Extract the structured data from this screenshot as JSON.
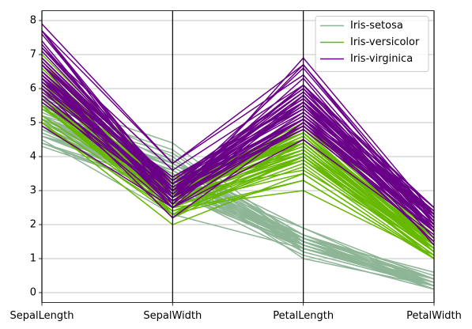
{
  "chart_data": {
    "type": "parallel",
    "categories": [
      "SepalLength",
      "SepalWidth",
      "PetalLength",
      "PetalWidth"
    ],
    "ylim": [
      -0.29,
      8.29
    ],
    "yticks": [
      0,
      1,
      2,
      3,
      4,
      5,
      6,
      7,
      8
    ],
    "grid": true,
    "legend": "upper right",
    "series": [
      {
        "name": "Iris-setosa",
        "color": "#8db596",
        "values": [
          [
            5.1,
            3.5,
            1.4,
            0.2
          ],
          [
            4.9,
            3.0,
            1.4,
            0.2
          ],
          [
            4.7,
            3.2,
            1.3,
            0.2
          ],
          [
            4.6,
            3.1,
            1.5,
            0.2
          ],
          [
            5.0,
            3.6,
            1.4,
            0.2
          ],
          [
            5.4,
            3.9,
            1.7,
            0.4
          ],
          [
            4.6,
            3.4,
            1.4,
            0.3
          ],
          [
            5.0,
            3.4,
            1.5,
            0.2
          ],
          [
            4.4,
            2.9,
            1.4,
            0.2
          ],
          [
            4.9,
            3.1,
            1.5,
            0.1
          ],
          [
            5.4,
            3.7,
            1.5,
            0.2
          ],
          [
            4.8,
            3.4,
            1.6,
            0.2
          ],
          [
            4.8,
            3.0,
            1.4,
            0.1
          ],
          [
            4.3,
            3.0,
            1.1,
            0.1
          ],
          [
            5.8,
            4.0,
            1.2,
            0.2
          ],
          [
            5.7,
            4.4,
            1.5,
            0.4
          ],
          [
            5.4,
            3.9,
            1.3,
            0.4
          ],
          [
            5.1,
            3.5,
            1.4,
            0.3
          ],
          [
            5.7,
            3.8,
            1.7,
            0.3
          ],
          [
            5.1,
            3.8,
            1.5,
            0.3
          ],
          [
            5.4,
            3.4,
            1.7,
            0.2
          ],
          [
            5.1,
            3.7,
            1.5,
            0.4
          ],
          [
            4.6,
            3.6,
            1.0,
            0.2
          ],
          [
            5.1,
            3.3,
            1.7,
            0.5
          ],
          [
            4.8,
            3.4,
            1.9,
            0.2
          ],
          [
            5.0,
            3.0,
            1.6,
            0.2
          ],
          [
            5.0,
            3.4,
            1.6,
            0.4
          ],
          [
            5.2,
            3.5,
            1.5,
            0.2
          ],
          [
            5.2,
            3.4,
            1.4,
            0.2
          ],
          [
            4.7,
            3.2,
            1.6,
            0.2
          ],
          [
            4.8,
            3.1,
            1.6,
            0.2
          ],
          [
            5.4,
            3.4,
            1.5,
            0.4
          ],
          [
            5.2,
            4.1,
            1.5,
            0.1
          ],
          [
            5.5,
            4.2,
            1.4,
            0.2
          ],
          [
            4.9,
            3.1,
            1.5,
            0.1
          ],
          [
            5.0,
            3.2,
            1.2,
            0.2
          ],
          [
            5.5,
            3.5,
            1.3,
            0.2
          ],
          [
            4.9,
            3.1,
            1.5,
            0.1
          ],
          [
            4.4,
            3.0,
            1.3,
            0.2
          ],
          [
            5.1,
            3.4,
            1.5,
            0.2
          ],
          [
            5.0,
            3.5,
            1.3,
            0.3
          ],
          [
            4.5,
            2.3,
            1.3,
            0.3
          ],
          [
            4.4,
            3.2,
            1.3,
            0.2
          ],
          [
            5.0,
            3.5,
            1.6,
            0.6
          ],
          [
            5.1,
            3.8,
            1.9,
            0.4
          ],
          [
            4.8,
            3.0,
            1.4,
            0.3
          ],
          [
            5.1,
            3.8,
            1.6,
            0.2
          ],
          [
            4.6,
            3.2,
            1.4,
            0.2
          ],
          [
            5.3,
            3.7,
            1.5,
            0.2
          ],
          [
            5.0,
            3.3,
            1.4,
            0.2
          ]
        ]
      },
      {
        "name": "Iris-versicolor",
        "color": "#66b800",
        "values": [
          [
            7.0,
            3.2,
            4.7,
            1.4
          ],
          [
            6.4,
            3.2,
            4.5,
            1.5
          ],
          [
            6.9,
            3.1,
            4.9,
            1.5
          ],
          [
            5.5,
            2.3,
            4.0,
            1.3
          ],
          [
            6.5,
            2.8,
            4.6,
            1.5
          ],
          [
            5.7,
            2.8,
            4.5,
            1.3
          ],
          [
            6.3,
            3.3,
            4.7,
            1.6
          ],
          [
            4.9,
            2.4,
            3.3,
            1.0
          ],
          [
            6.6,
            2.9,
            4.6,
            1.3
          ],
          [
            5.2,
            2.7,
            3.9,
            1.4
          ],
          [
            5.0,
            2.0,
            3.5,
            1.0
          ],
          [
            5.9,
            3.0,
            4.2,
            1.5
          ],
          [
            6.0,
            2.2,
            4.0,
            1.0
          ],
          [
            6.1,
            2.9,
            4.7,
            1.4
          ],
          [
            5.6,
            2.9,
            3.6,
            1.3
          ],
          [
            6.7,
            3.1,
            4.4,
            1.4
          ],
          [
            5.6,
            3.0,
            4.5,
            1.5
          ],
          [
            5.8,
            2.7,
            4.1,
            1.0
          ],
          [
            6.2,
            2.2,
            4.5,
            1.5
          ],
          [
            5.6,
            2.5,
            3.9,
            1.1
          ],
          [
            5.9,
            3.2,
            4.8,
            1.8
          ],
          [
            6.1,
            2.8,
            4.0,
            1.3
          ],
          [
            6.3,
            2.5,
            4.9,
            1.5
          ],
          [
            6.1,
            2.8,
            4.7,
            1.2
          ],
          [
            6.4,
            2.9,
            4.3,
            1.3
          ],
          [
            6.6,
            3.0,
            4.4,
            1.4
          ],
          [
            6.8,
            2.8,
            4.8,
            1.4
          ],
          [
            6.7,
            3.0,
            5.0,
            1.7
          ],
          [
            6.0,
            2.9,
            4.5,
            1.5
          ],
          [
            5.7,
            2.6,
            3.5,
            1.0
          ],
          [
            5.5,
            2.4,
            3.8,
            1.1
          ],
          [
            5.5,
            2.4,
            3.7,
            1.0
          ],
          [
            5.8,
            2.7,
            3.9,
            1.2
          ],
          [
            6.0,
            2.7,
            5.1,
            1.6
          ],
          [
            5.4,
            3.0,
            4.5,
            1.5
          ],
          [
            6.0,
            3.4,
            4.5,
            1.6
          ],
          [
            6.7,
            3.1,
            4.7,
            1.5
          ],
          [
            6.3,
            2.3,
            4.4,
            1.3
          ],
          [
            5.6,
            3.0,
            4.1,
            1.3
          ],
          [
            5.5,
            2.5,
            4.0,
            1.3
          ],
          [
            5.5,
            2.6,
            4.4,
            1.2
          ],
          [
            6.1,
            3.0,
            4.6,
            1.4
          ],
          [
            5.8,
            2.6,
            4.0,
            1.2
          ],
          [
            5.0,
            2.3,
            3.3,
            1.0
          ],
          [
            5.6,
            2.7,
            4.2,
            1.3
          ],
          [
            5.7,
            3.0,
            4.2,
            1.2
          ],
          [
            5.7,
            2.9,
            4.2,
            1.3
          ],
          [
            6.2,
            2.9,
            4.3,
            1.3
          ],
          [
            5.1,
            2.5,
            3.0,
            1.1
          ],
          [
            5.7,
            2.8,
            4.1,
            1.3
          ]
        ]
      },
      {
        "name": "Iris-virginica",
        "color": "#6a0088",
        "values": [
          [
            6.3,
            3.3,
            6.0,
            2.5
          ],
          [
            5.8,
            2.7,
            5.1,
            1.9
          ],
          [
            7.1,
            3.0,
            5.9,
            2.1
          ],
          [
            6.3,
            2.9,
            5.6,
            1.8
          ],
          [
            6.5,
            3.0,
            5.8,
            2.2
          ],
          [
            7.6,
            3.0,
            6.6,
            2.1
          ],
          [
            4.9,
            2.5,
            4.5,
            1.7
          ],
          [
            7.3,
            2.9,
            6.3,
            1.8
          ],
          [
            6.7,
            2.5,
            5.8,
            1.8
          ],
          [
            7.2,
            3.6,
            6.1,
            2.5
          ],
          [
            6.5,
            3.2,
            5.1,
            2.0
          ],
          [
            6.4,
            2.7,
            5.3,
            1.9
          ],
          [
            6.8,
            3.0,
            5.5,
            2.1
          ],
          [
            5.7,
            2.5,
            5.0,
            2.0
          ],
          [
            5.8,
            2.8,
            5.1,
            2.4
          ],
          [
            6.4,
            3.2,
            5.3,
            2.3
          ],
          [
            6.5,
            3.0,
            5.5,
            1.8
          ],
          [
            7.7,
            3.8,
            6.7,
            2.2
          ],
          [
            7.7,
            2.6,
            6.9,
            2.3
          ],
          [
            6.0,
            2.2,
            5.0,
            1.5
          ],
          [
            6.9,
            3.2,
            5.7,
            2.3
          ],
          [
            5.6,
            2.8,
            4.9,
            2.0
          ],
          [
            7.7,
            2.8,
            6.7,
            2.0
          ],
          [
            6.3,
            2.7,
            4.9,
            1.8
          ],
          [
            6.7,
            3.3,
            5.7,
            2.1
          ],
          [
            7.2,
            3.2,
            6.0,
            1.8
          ],
          [
            6.2,
            2.8,
            4.8,
            1.8
          ],
          [
            6.1,
            3.0,
            4.9,
            1.8
          ],
          [
            6.4,
            2.8,
            5.6,
            2.1
          ],
          [
            7.2,
            3.0,
            5.8,
            1.6
          ],
          [
            7.4,
            2.8,
            6.1,
            1.9
          ],
          [
            7.9,
            3.8,
            6.4,
            2.0
          ],
          [
            6.4,
            2.8,
            5.6,
            2.2
          ],
          [
            6.3,
            2.8,
            5.1,
            1.5
          ],
          [
            6.1,
            2.6,
            5.6,
            1.4
          ],
          [
            7.7,
            3.0,
            6.1,
            2.3
          ],
          [
            6.3,
            3.4,
            5.6,
            2.4
          ],
          [
            6.4,
            3.1,
            5.5,
            1.8
          ],
          [
            6.0,
            3.0,
            4.8,
            1.8
          ],
          [
            6.9,
            3.1,
            5.4,
            2.1
          ],
          [
            6.7,
            3.1,
            5.6,
            2.4
          ],
          [
            6.9,
            3.1,
            5.1,
            2.3
          ],
          [
            5.8,
            2.7,
            5.1,
            1.9
          ],
          [
            6.8,
            3.2,
            5.9,
            2.3
          ],
          [
            6.7,
            3.3,
            5.7,
            2.5
          ],
          [
            6.7,
            3.0,
            5.2,
            2.3
          ],
          [
            6.3,
            2.5,
            5.0,
            1.9
          ],
          [
            6.5,
            3.0,
            5.2,
            2.0
          ],
          [
            6.2,
            3.4,
            5.4,
            2.3
          ],
          [
            5.9,
            3.0,
            5.1,
            1.8
          ]
        ]
      }
    ]
  }
}
